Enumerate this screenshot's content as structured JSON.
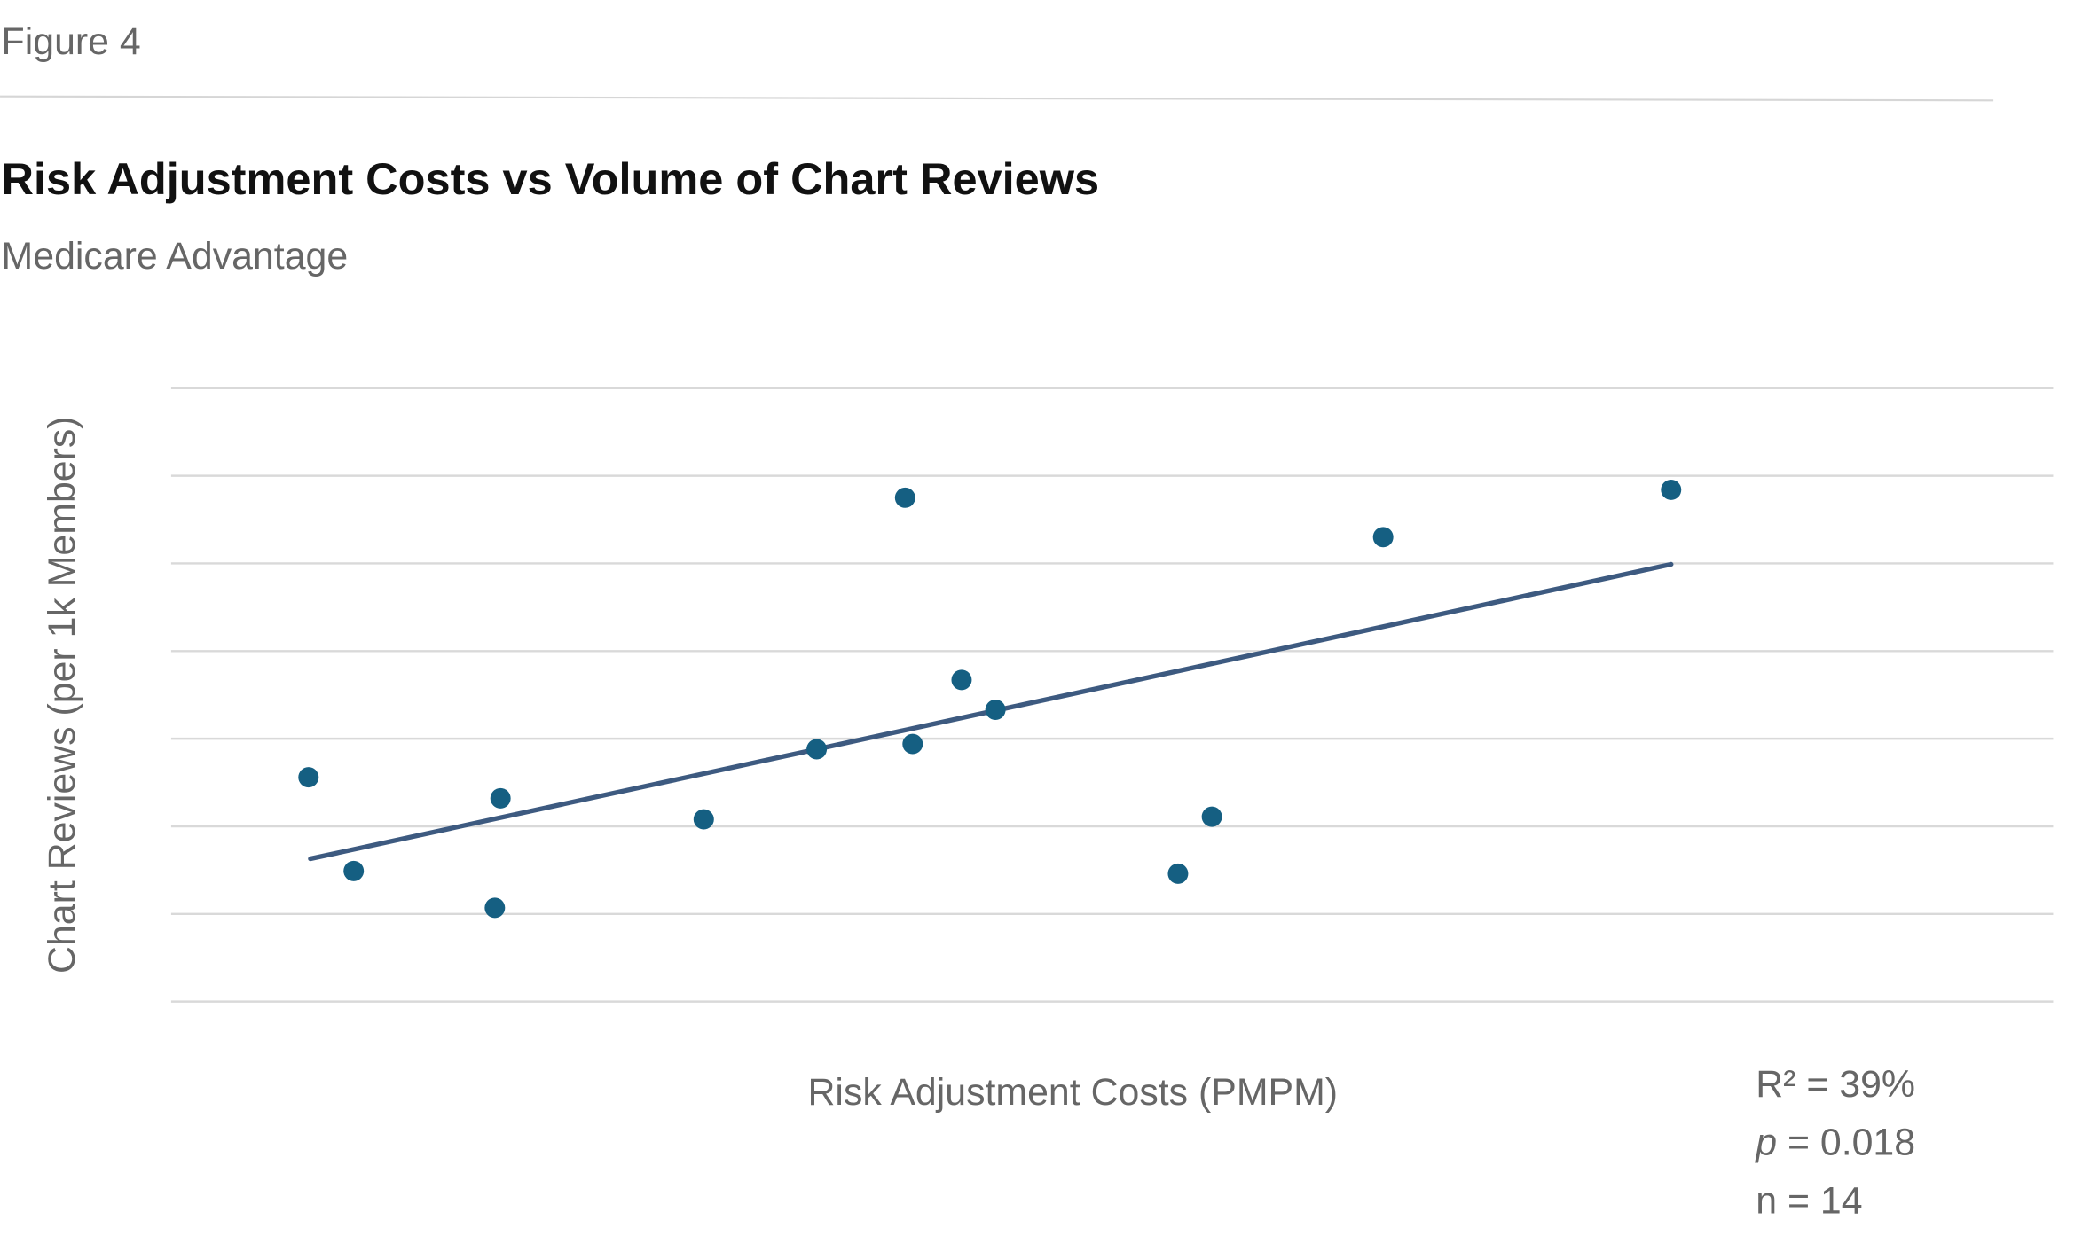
{
  "figure_label": "Figure 4",
  "chart_data": {
    "type": "scatter",
    "title": "Risk Adjustment Costs vs Volume of Chart Reviews",
    "subtitle": "Medicare Advantage",
    "xlabel": "Risk Adjustment Costs (PMPM)",
    "ylabel": "Chart Reviews (per 1k Members)",
    "tick_labels_shown": false,
    "xlim": [
      0,
      100
    ],
    "ylim": [
      0,
      7
    ],
    "grid": "horizontal",
    "gridline_count": 8,
    "points": [
      {
        "x": 7.3,
        "y": 2.56
      },
      {
        "x": 9.7,
        "y": 1.49
      },
      {
        "x": 17.2,
        "y": 1.07
      },
      {
        "x": 17.5,
        "y": 2.32
      },
      {
        "x": 28.3,
        "y": 2.08
      },
      {
        "x": 34.3,
        "y": 2.88
      },
      {
        "x": 39.0,
        "y": 5.75
      },
      {
        "x": 39.4,
        "y": 2.94
      },
      {
        "x": 42.0,
        "y": 3.67
      },
      {
        "x": 43.8,
        "y": 3.33
      },
      {
        "x": 53.5,
        "y": 1.46
      },
      {
        "x": 55.3,
        "y": 2.11
      },
      {
        "x": 64.4,
        "y": 5.3
      },
      {
        "x": 79.7,
        "y": 5.84
      }
    ],
    "trendline": {
      "x": [
        7.4,
        79.7
      ],
      "y": [
        1.63,
        4.99
      ]
    },
    "stats": {
      "r2_prefix": "R² = ",
      "r2_value": "39%",
      "p_symbol": "p",
      "p_rest": " = 0.018",
      "n_text": "n = 14"
    },
    "colors": {
      "points": "#155f82",
      "trendline": "#3d5a80",
      "grid": "#d9d9d9",
      "text": "#666666",
      "title": "#111111"
    }
  }
}
